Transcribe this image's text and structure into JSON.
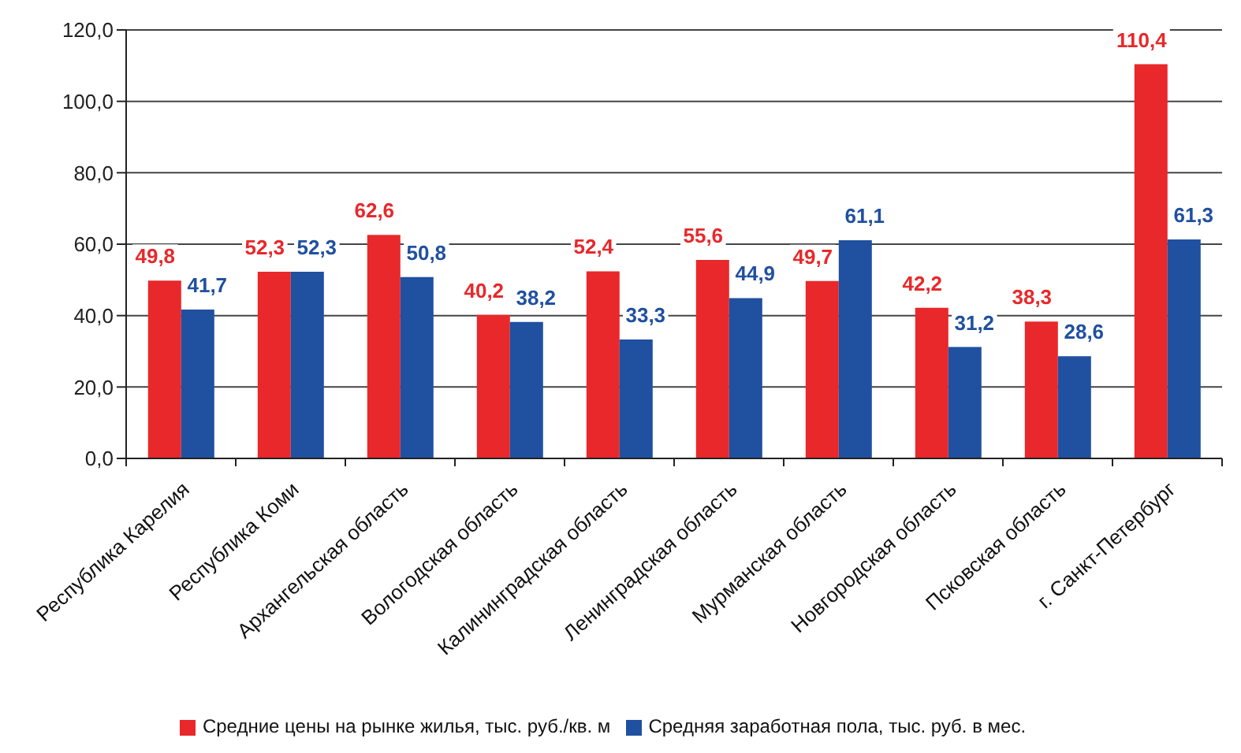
{
  "chart_data": {
    "type": "bar",
    "categories": [
      "Республика Карелия",
      "Республика Коми",
      "Архангельская область",
      "Вологодская область",
      "Калининградская область",
      "Ленинградская область",
      "Мурманская область",
      "Новгородская область",
      "Псковская область",
      "г. Санкт-Петербург"
    ],
    "series": [
      {
        "name": "Средние цены на рынке жилья, тыс. руб./кв. м",
        "color": "#e8282b",
        "values": [
          49.8,
          52.3,
          62.6,
          40.2,
          52.4,
          55.6,
          49.7,
          42.2,
          38.3,
          110.4
        ],
        "value_labels": [
          "49,8",
          "52,3",
          "62,6",
          "40,2",
          "52,4",
          "55,6",
          "49,7",
          "42,2",
          "38,3",
          "110,4"
        ]
      },
      {
        "name": "Средняя заработная пола, тыс. руб. в мес.",
        "color": "#2050a0",
        "values": [
          41.7,
          52.3,
          50.8,
          38.2,
          33.3,
          44.9,
          61.1,
          31.2,
          28.6,
          61.3
        ],
        "value_labels": [
          "41,7",
          "52,3",
          "50,8",
          "38,2",
          "33,3",
          "44,9",
          "61,1",
          "31,2",
          "28,6",
          "61,3"
        ]
      }
    ],
    "ylim": [
      0,
      120
    ],
    "yticks": [
      {
        "value": 0,
        "label": "0,0"
      },
      {
        "value": 20,
        "label": "20,0"
      },
      {
        "value": 40,
        "label": "40,0"
      },
      {
        "value": 60,
        "label": "60,0"
      },
      {
        "value": 80,
        "label": "80,0"
      },
      {
        "value": 100,
        "label": "100,0"
      },
      {
        "value": 120,
        "label": "120,0"
      }
    ],
    "grid": "y",
    "legend": "bottom"
  }
}
